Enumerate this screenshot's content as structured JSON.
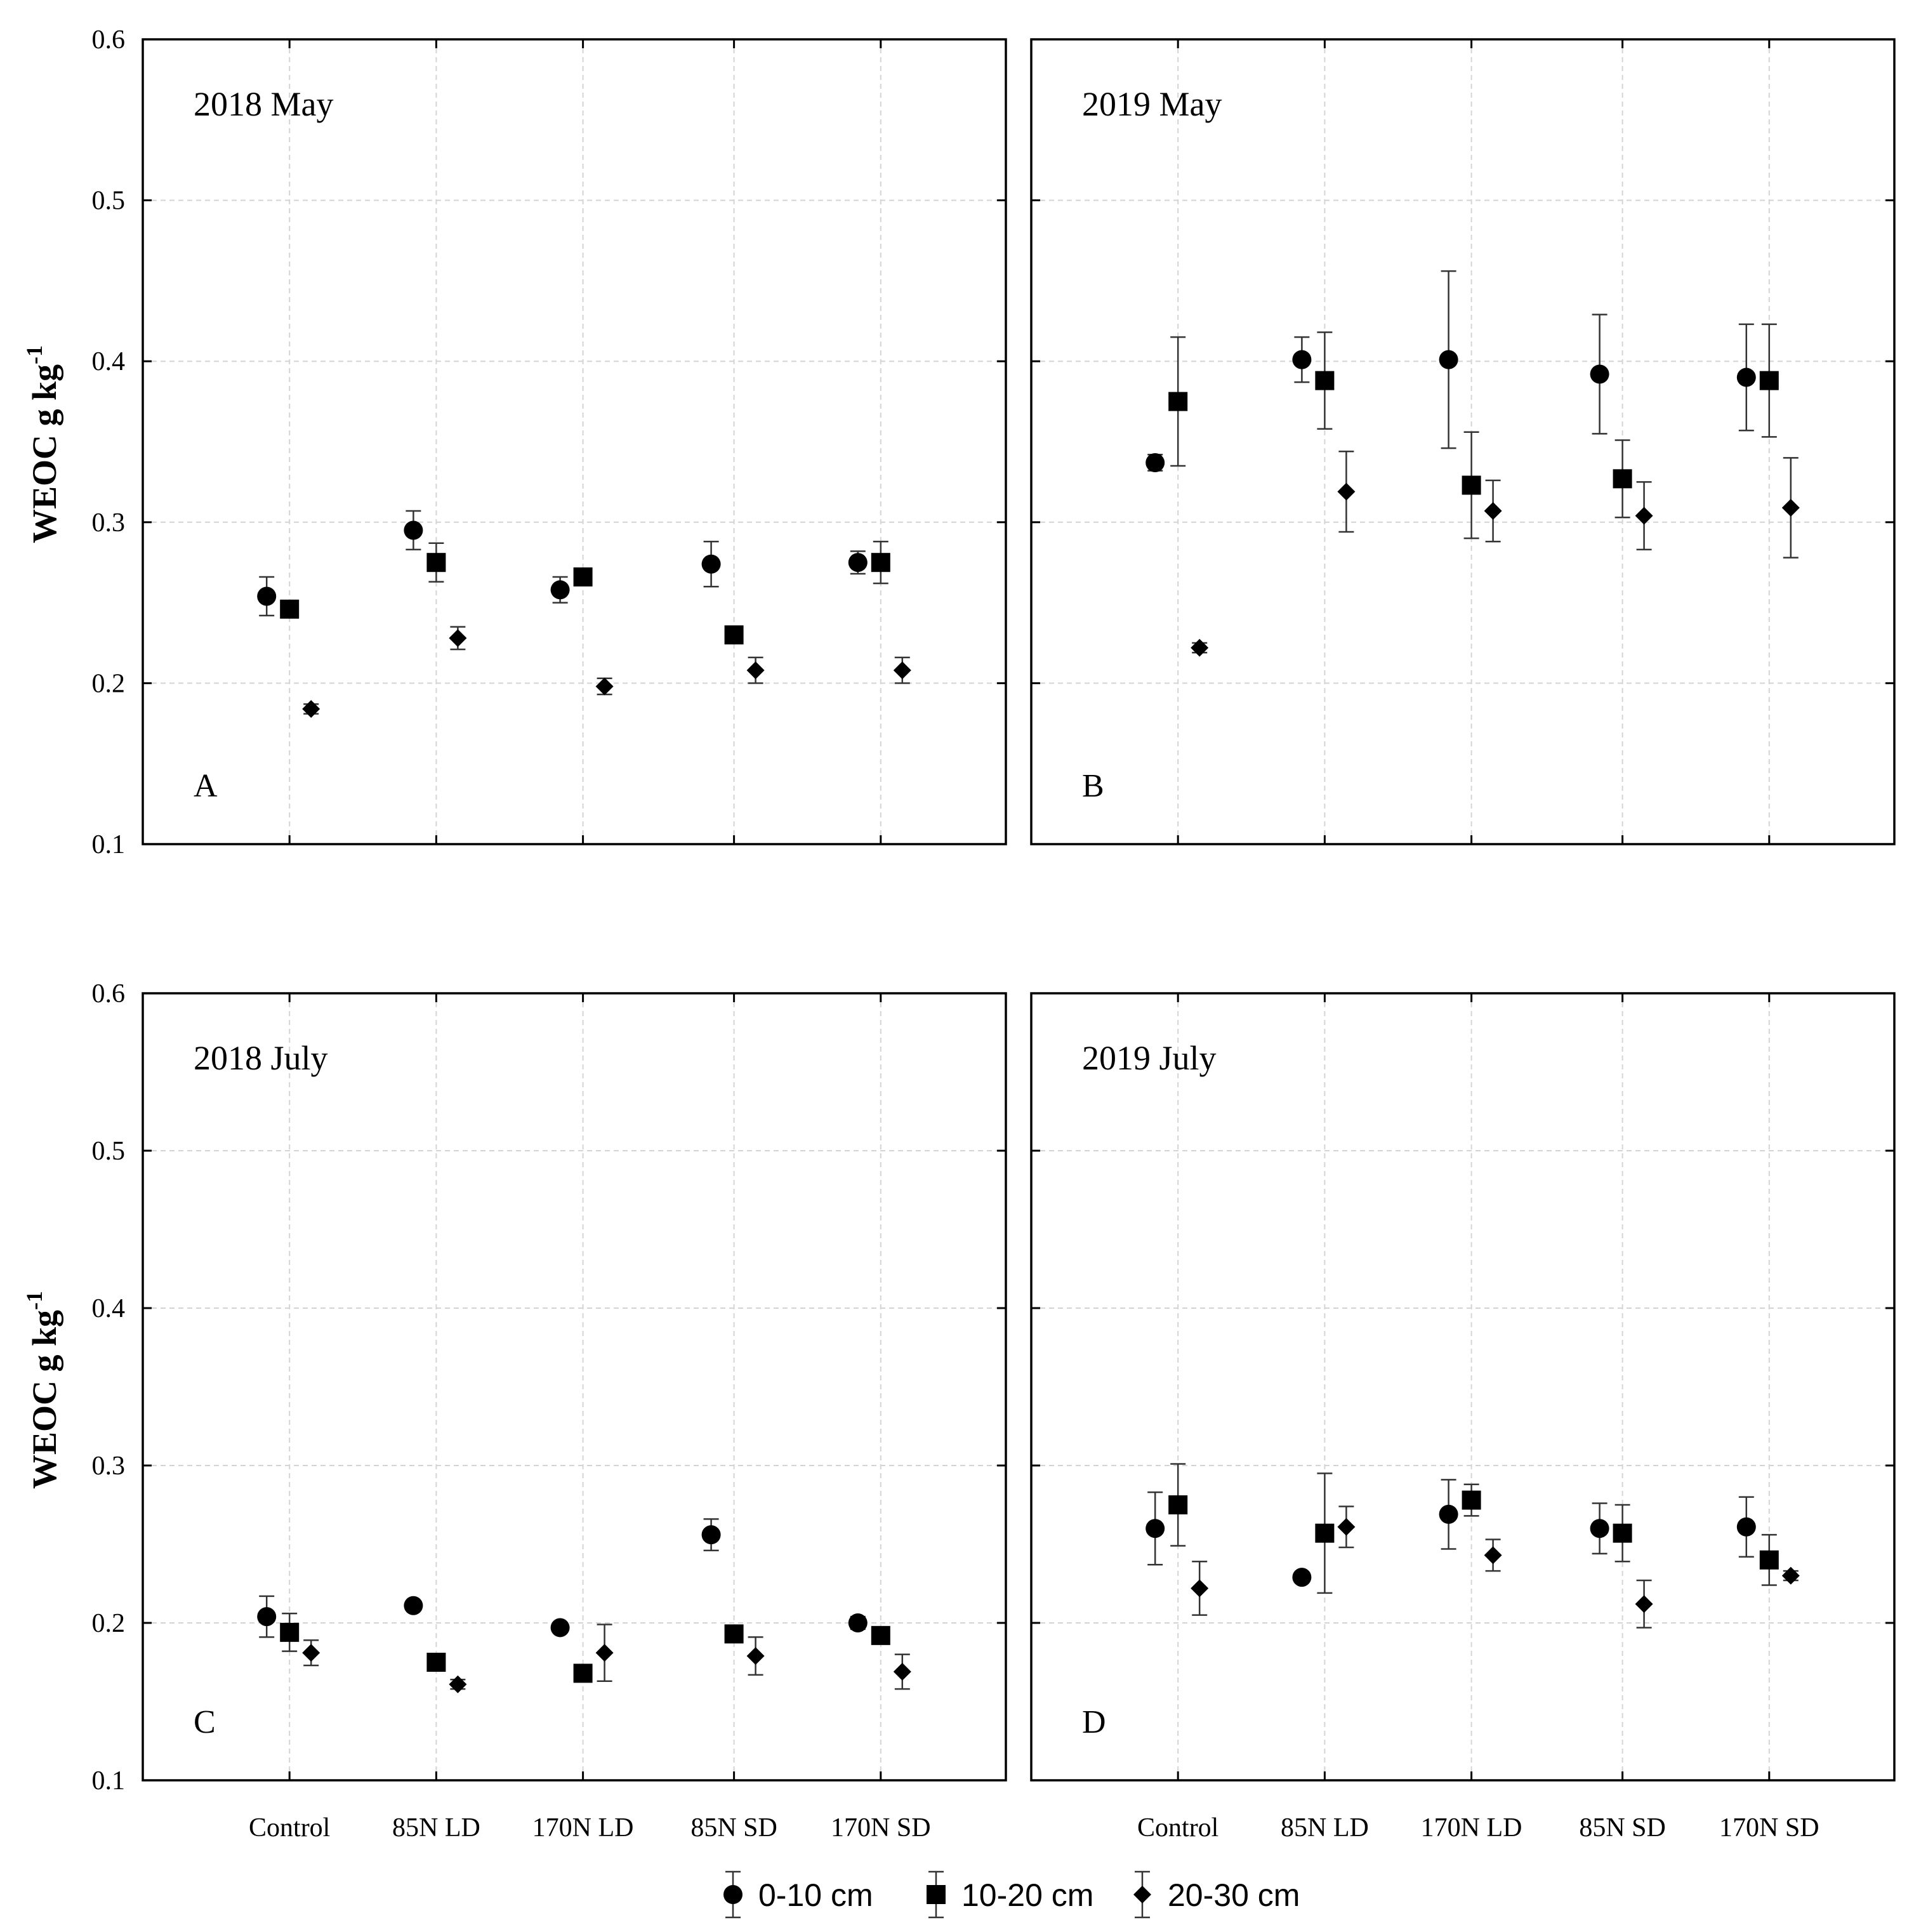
{
  "chart_data": {
    "type": "scatter",
    "ylabel": "WEOC g kg",
    "ylabel_superscript": "-1",
    "ylim": [
      0.1,
      0.6
    ],
    "yticks": [
      "0.1",
      "0.2",
      "0.3",
      "0.4",
      "0.5",
      "0.6"
    ],
    "categories": [
      "Control",
      "85N LD",
      "170N LD",
      "85N SD",
      "170N SD"
    ],
    "legend": [
      {
        "name": "0-10 cm",
        "marker": "circle-icon"
      },
      {
        "name": "10-20 cm",
        "marker": "square-icon"
      },
      {
        "name": "20-30 cm",
        "marker": "diamond-icon"
      }
    ],
    "panels": [
      {
        "letter": "A",
        "title": "2018 May",
        "series": [
          {
            "name": "0-10 cm",
            "marker": "circle",
            "values": [
              0.254,
              0.295,
              0.258,
              0.274,
              0.275
            ],
            "errors": [
              0.012,
              0.012,
              0.008,
              0.014,
              0.007
            ]
          },
          {
            "name": "10-20 cm",
            "marker": "square",
            "values": [
              0.246,
              0.275,
              0.266,
              0.23,
              0.275
            ],
            "errors": [
              0.004,
              0.012,
              0.004,
              0.003,
              0.013
            ]
          },
          {
            "name": "20-30 cm",
            "marker": "diamond",
            "values": [
              0.184,
              0.228,
              0.198,
              0.208,
              0.208
            ],
            "errors": [
              0.003,
              0.007,
              0.005,
              0.008,
              0.008
            ]
          }
        ]
      },
      {
        "letter": "B",
        "title": "2019 May",
        "series": [
          {
            "name": "0-10 cm",
            "marker": "circle",
            "values": [
              0.337,
              0.401,
              0.401,
              0.392,
              0.39
            ],
            "errors": [
              0.005,
              0.014,
              0.055,
              0.037,
              0.033
            ]
          },
          {
            "name": "10-20 cm",
            "marker": "square",
            "values": [
              0.375,
              0.388,
              0.323,
              0.327,
              0.388
            ],
            "errors": [
              0.04,
              0.03,
              0.033,
              0.024,
              0.035
            ]
          },
          {
            "name": "20-30 cm",
            "marker": "diamond",
            "values": [
              0.222,
              0.319,
              0.307,
              0.304,
              0.309
            ],
            "errors": [
              0.003,
              0.025,
              0.019,
              0.021,
              0.031
            ]
          }
        ]
      },
      {
        "letter": "C",
        "title": "2018 July",
        "series": [
          {
            "name": "0-10 cm",
            "marker": "circle",
            "values": [
              0.204,
              0.211,
              0.197,
              0.256,
              0.2
            ],
            "errors": [
              0.013,
              0.003,
              0.003,
              0.01,
              0.004
            ]
          },
          {
            "name": "10-20 cm",
            "marker": "square",
            "values": [
              0.194,
              0.175,
              0.168,
              0.193,
              0.192
            ],
            "errors": [
              0.012,
              0.004,
              0.005,
              0.004,
              0.004
            ]
          },
          {
            "name": "20-30 cm",
            "marker": "diamond",
            "values": [
              0.181,
              0.161,
              0.181,
              0.179,
              0.169
            ],
            "errors": [
              0.008,
              0.003,
              0.018,
              0.012,
              0.011
            ]
          }
        ]
      },
      {
        "letter": "D",
        "title": "2019 July",
        "series": [
          {
            "name": "0-10 cm",
            "marker": "circle",
            "values": [
              0.26,
              0.229,
              0.269,
              0.26,
              0.261
            ],
            "errors": [
              0.023,
              0.003,
              0.022,
              0.016,
              0.019
            ]
          },
          {
            "name": "10-20 cm",
            "marker": "square",
            "values": [
              0.275,
              0.257,
              0.278,
              0.257,
              0.24
            ],
            "errors": [
              0.026,
              0.038,
              0.01,
              0.018,
              0.016
            ]
          },
          {
            "name": "20-30 cm",
            "marker": "diamond",
            "values": [
              0.222,
              0.261,
              0.243,
              0.212,
              0.23
            ],
            "errors": [
              0.017,
              0.013,
              0.01,
              0.015,
              0.003
            ]
          }
        ]
      }
    ]
  }
}
